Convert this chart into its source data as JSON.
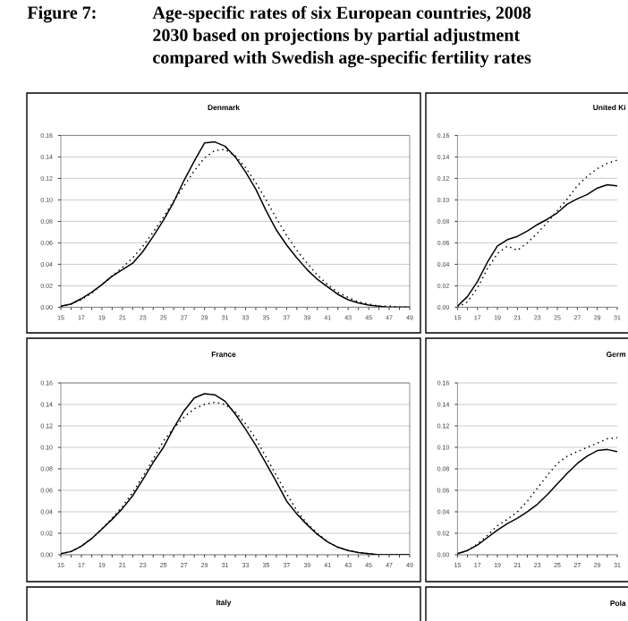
{
  "chart_data": [
    {
      "type": "line",
      "title": "Denmark",
      "annotations": [
        "Figure 7:",
        "Age-specific rates of six European countries, 2008",
        "2030 based on projections by partial adjustment",
        "compared with Swedish age-specific fertility rates"
      ],
      "x": [
        15,
        16,
        17,
        18,
        19,
        20,
        21,
        22,
        23,
        24,
        25,
        26,
        27,
        28,
        29,
        30,
        31,
        32,
        33,
        34,
        35,
        36,
        37,
        38,
        39,
        40,
        41,
        42,
        43,
        44,
        45,
        46,
        47,
        48,
        49
      ],
      "series": [
        {
          "color": "#000000",
          "line_style": "solid",
          "values": [
            0.001,
            0.003,
            0.008,
            0.014,
            0.021,
            0.029,
            0.035,
            0.041,
            0.052,
            0.066,
            0.081,
            0.098,
            0.118,
            0.136,
            0.153,
            0.154,
            0.15,
            0.14,
            0.126,
            0.11,
            0.09,
            0.072,
            0.058,
            0.046,
            0.035,
            0.026,
            0.019,
            0.012,
            0.007,
            0.004,
            0.002,
            0.001,
            0.0,
            0.0,
            0.0
          ]
        },
        {
          "color": "#000000",
          "line_style": "dotted",
          "values": [
            0.001,
            0.003,
            0.007,
            0.013,
            0.021,
            0.029,
            0.037,
            0.046,
            0.057,
            0.07,
            0.084,
            0.099,
            0.113,
            0.127,
            0.139,
            0.146,
            0.147,
            0.141,
            0.13,
            0.116,
            0.1,
            0.083,
            0.067,
            0.053,
            0.041,
            0.03,
            0.021,
            0.014,
            0.009,
            0.005,
            0.003,
            0.001,
            0.001,
            0.0,
            0.0
          ]
        }
      ],
      "xlim": [
        15,
        49
      ],
      "ylim": [
        0,
        0.16
      ],
      "xticks": [
        15,
        {
          "value": 16,
          "label": null
        },
        17,
        {
          "value": 18,
          "label": null
        },
        19,
        {
          "value": 20,
          "label": null
        },
        21,
        {
          "value": 22,
          "label": null
        },
        23,
        {
          "value": 24,
          "label": null
        },
        25,
        {
          "value": 26,
          "label": null
        },
        27,
        {
          "value": 28,
          "label": null
        },
        29,
        {
          "value": 30,
          "label": null
        },
        31,
        {
          "value": 32,
          "label": null
        },
        33,
        {
          "value": 34,
          "label": null
        },
        35,
        {
          "value": 36,
          "label": null
        },
        37,
        {
          "value": 38,
          "label": null
        },
        39,
        {
          "value": 40,
          "label": null
        },
        41,
        {
          "value": 42,
          "label": null
        },
        43,
        {
          "value": 44,
          "label": null
        },
        45,
        {
          "value": 46,
          "label": null
        },
        47,
        {
          "value": 48,
          "label": null
        },
        49
      ],
      "yticks": [
        {
          "value": 0,
          "label": "0.00"
        },
        {
          "value": 0.02,
          "label": "0.02"
        },
        {
          "value": 0.04,
          "label": "0.04"
        },
        {
          "value": 0.06,
          "label": "0.06"
        },
        {
          "value": 0.08,
          "label": "0.08"
        },
        {
          "value": 0.1,
          "label": "0.10"
        },
        {
          "value": 0.12,
          "label": "0.12"
        },
        {
          "value": 0.14,
          "label": "0.14"
        },
        {
          "value": 0.16,
          "label": "0.16"
        }
      ],
      "grid": "y"
    },
    {
      "type": "line",
      "title": "United Ki",
      "x": [
        15,
        16,
        17,
        18,
        19,
        20,
        21,
        22,
        23,
        24,
        25,
        26,
        27,
        28,
        29,
        30,
        31
      ],
      "series": [
        {
          "color": "#000000",
          "line_style": "solid",
          "values": [
            0.001,
            0.01,
            0.024,
            0.042,
            0.057,
            0.063,
            0.066,
            0.071,
            0.077,
            0.082,
            0.088,
            0.096,
            0.101,
            0.105,
            0.111,
            0.114,
            0.113
          ]
        },
        {
          "color": "#000000",
          "line_style": "dotted",
          "values": [
            0.0,
            0.005,
            0.018,
            0.036,
            0.05,
            0.057,
            0.053,
            0.06,
            0.069,
            0.079,
            0.09,
            0.101,
            0.113,
            0.122,
            0.129,
            0.134,
            0.137
          ]
        }
      ],
      "xlim": [
        15,
        31
      ],
      "ylim": [
        0,
        0.16
      ],
      "xticks": [
        15,
        {
          "value": 16,
          "label": null
        },
        17,
        {
          "value": 18,
          "label": null
        },
        19,
        {
          "value": 20,
          "label": null
        },
        21,
        {
          "value": 22,
          "label": null
        },
        23,
        {
          "value": 24,
          "label": null
        },
        25,
        {
          "value": 26,
          "label": null
        },
        27,
        {
          "value": 28,
          "label": null
        },
        29,
        {
          "value": 30,
          "label": null
        },
        31
      ],
      "yticks": [
        {
          "value": 0,
          "label": "0.00"
        },
        {
          "value": 0.02,
          "label": "0.02"
        },
        {
          "value": 0.04,
          "label": "0.04"
        },
        {
          "value": 0.06,
          "label": "0.06"
        },
        {
          "value": 0.08,
          "label": "0.08"
        },
        {
          "value": 0.1,
          "label": "0.10"
        },
        {
          "value": 0.12,
          "label": "0.12"
        },
        {
          "value": 0.14,
          "label": "0.14"
        },
        {
          "value": 0.16,
          "label": "0.16"
        }
      ],
      "grid": "y"
    },
    {
      "type": "line",
      "title": "France",
      "x": [
        15,
        16,
        17,
        18,
        19,
        20,
        21,
        22,
        23,
        24,
        25,
        26,
        27,
        28,
        29,
        30,
        31,
        32,
        33,
        34,
        35,
        36,
        37,
        38,
        39,
        40,
        41,
        42,
        43,
        44,
        45,
        46,
        47,
        48,
        49
      ],
      "series": [
        {
          "color": "#000000",
          "line_style": "solid",
          "values": [
            0.001,
            0.003,
            0.008,
            0.015,
            0.024,
            0.033,
            0.043,
            0.055,
            0.07,
            0.086,
            0.1,
            0.118,
            0.134,
            0.146,
            0.15,
            0.149,
            0.143,
            0.131,
            0.117,
            0.102,
            0.085,
            0.068,
            0.05,
            0.038,
            0.028,
            0.019,
            0.012,
            0.007,
            0.004,
            0.002,
            0.001,
            0.0,
            0.0,
            0.0,
            0.0
          ]
        },
        {
          "color": "#000000",
          "line_style": "dotted",
          "values": [
            0.001,
            0.003,
            0.008,
            0.015,
            0.024,
            0.034,
            0.045,
            0.058,
            0.073,
            0.089,
            0.106,
            0.118,
            0.128,
            0.136,
            0.14,
            0.142,
            0.14,
            0.133,
            0.122,
            0.108,
            0.091,
            0.074,
            0.057,
            0.041,
            0.029,
            0.02,
            0.012,
            0.007,
            0.004,
            0.002,
            0.001,
            0.0,
            0.0,
            0.0,
            0.0
          ]
        }
      ],
      "xlim": [
        15,
        49
      ],
      "ylim": [
        0,
        0.16
      ],
      "xticks": [
        15,
        {
          "value": 16,
          "label": null
        },
        17,
        {
          "value": 18,
          "label": null
        },
        19,
        {
          "value": 20,
          "label": null
        },
        21,
        {
          "value": 22,
          "label": null
        },
        23,
        {
          "value": 24,
          "label": null
        },
        25,
        {
          "value": 26,
          "label": null
        },
        27,
        {
          "value": 28,
          "label": null
        },
        29,
        {
          "value": 30,
          "label": null
        },
        31,
        {
          "value": 32,
          "label": null
        },
        33,
        {
          "value": 34,
          "label": null
        },
        35,
        {
          "value": 36,
          "label": null
        },
        37,
        {
          "value": 38,
          "label": null
        },
        39,
        {
          "value": 40,
          "label": null
        },
        41,
        {
          "value": 42,
          "label": null
        },
        43,
        {
          "value": 44,
          "label": null
        },
        45,
        {
          "value": 46,
          "label": null
        },
        47,
        {
          "value": 48,
          "label": null
        },
        49
      ],
      "yticks": [
        {
          "value": 0,
          "label": "0.00"
        },
        {
          "value": 0.02,
          "label": "0.02"
        },
        {
          "value": 0.04,
          "label": "0.04"
        },
        {
          "value": 0.06,
          "label": "0.06"
        },
        {
          "value": 0.08,
          "label": "0.08"
        },
        {
          "value": 0.1,
          "label": "0.10"
        },
        {
          "value": 0.12,
          "label": "0.12"
        },
        {
          "value": 0.14,
          "label": "0.14"
        },
        {
          "value": 0.16,
          "label": "0.16"
        }
      ],
      "grid": "y"
    },
    {
      "type": "line",
      "title": "Germ",
      "x": [
        15,
        16,
        17,
        18,
        19,
        20,
        21,
        22,
        23,
        24,
        25,
        26,
        27,
        28,
        29,
        30,
        31
      ],
      "series": [
        {
          "color": "#000000",
          "line_style": "solid",
          "values": [
            0.001,
            0.004,
            0.009,
            0.016,
            0.023,
            0.029,
            0.034,
            0.04,
            0.047,
            0.056,
            0.066,
            0.076,
            0.085,
            0.092,
            0.097,
            0.098,
            0.096
          ]
        },
        {
          "color": "#000000",
          "line_style": "dotted",
          "values": [
            0.001,
            0.004,
            0.01,
            0.018,
            0.027,
            0.033,
            0.04,
            0.05,
            0.062,
            0.074,
            0.085,
            0.092,
            0.096,
            0.1,
            0.104,
            0.108,
            0.109
          ]
        }
      ],
      "xlim": [
        15,
        31
      ],
      "ylim": [
        0,
        0.16
      ],
      "xticks": [
        15,
        {
          "value": 16,
          "label": null
        },
        17,
        {
          "value": 18,
          "label": null
        },
        19,
        {
          "value": 20,
          "label": null
        },
        21,
        {
          "value": 22,
          "label": null
        },
        23,
        {
          "value": 24,
          "label": null
        },
        25,
        {
          "value": 26,
          "label": null
        },
        27,
        {
          "value": 28,
          "label": null
        },
        29,
        {
          "value": 30,
          "label": null
        },
        31
      ],
      "yticks": [
        {
          "value": 0,
          "label": "0.00"
        },
        {
          "value": 0.02,
          "label": "0.02"
        },
        {
          "value": 0.04,
          "label": "0.04"
        },
        {
          "value": 0.06,
          "label": "0.06"
        },
        {
          "value": 0.08,
          "label": "0.08"
        },
        {
          "value": 0.1,
          "label": "0.10"
        },
        {
          "value": 0.12,
          "label": "0.12"
        },
        {
          "value": 0.14,
          "label": "0.14"
        },
        {
          "value": 0.16,
          "label": "0.16"
        }
      ],
      "grid": "y"
    },
    {
      "type": "other",
      "title": "Italy"
    },
    {
      "type": "other",
      "title": "Pola"
    }
  ]
}
